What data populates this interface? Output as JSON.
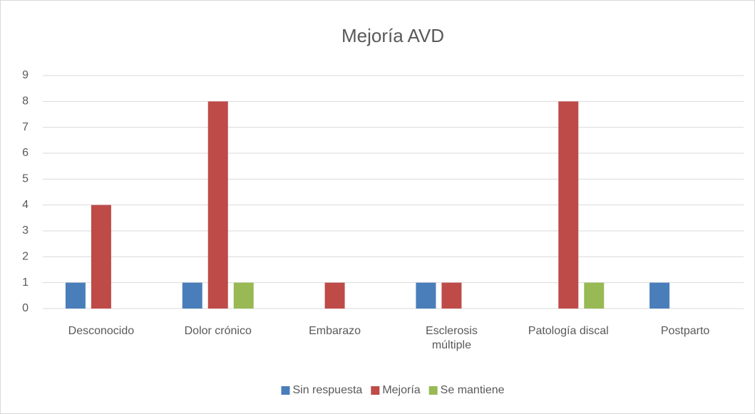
{
  "chart_data": {
    "type": "bar",
    "title": "Mejoría AVD",
    "categories": [
      "Desconocido",
      "Dolor crónico",
      "Embarazo",
      "Esclerosis múltiple",
      "Patología discal",
      "Postparto"
    ],
    "series": [
      {
        "name": "Sin respuesta",
        "color": "#4a7ebb",
        "values": [
          1,
          1,
          0,
          1,
          0,
          1
        ]
      },
      {
        "name": "Mejoría",
        "color": "#be4b48",
        "values": [
          4,
          8,
          1,
          1,
          8,
          0
        ]
      },
      {
        "name": "Se mantiene",
        "color": "#98b954",
        "values": [
          0,
          1,
          0,
          0,
          1,
          0
        ]
      }
    ],
    "ylim": [
      0,
      9
    ],
    "yticks": [
      0,
      1,
      2,
      3,
      4,
      5,
      6,
      7,
      8,
      9
    ],
    "grid": true,
    "legend": "bottom"
  }
}
